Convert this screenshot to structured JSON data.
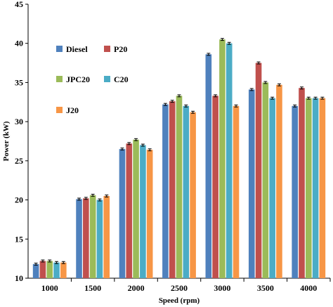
{
  "chart_data": {
    "type": "bar",
    "xlabel": "Speed (rpm)",
    "ylabel": "Power (kW)",
    "ylim": [
      10,
      45
    ],
    "yticks": [
      10,
      15,
      20,
      25,
      30,
      35,
      40,
      45
    ],
    "categories": [
      "1000",
      "1500",
      "2000",
      "2500",
      "3000",
      "3500",
      "4000"
    ],
    "series": [
      {
        "name": "Diesel",
        "color": "#4f81bd",
        "values": [
          11.8,
          20.1,
          26.5,
          32.2,
          38.6,
          34.1,
          32.0
        ]
      },
      {
        "name": "P20",
        "color": "#c0504d",
        "values": [
          12.2,
          20.2,
          27.2,
          32.6,
          33.3,
          37.5,
          34.3
        ]
      },
      {
        "name": "JPC20",
        "color": "#9bbb59",
        "values": [
          12.2,
          20.6,
          27.7,
          33.3,
          40.5,
          35.0,
          33.0
        ]
      },
      {
        "name": "C20",
        "color": "#4bacc6",
        "values": [
          12.0,
          20.0,
          27.0,
          32.0,
          40.0,
          33.0,
          33.0
        ]
      },
      {
        "name": "J20",
        "color": "#f79646",
        "values": [
          12.0,
          20.5,
          26.4,
          31.2,
          32.0,
          34.7,
          33.0
        ]
      }
    ],
    "legend_position": "top-left",
    "grid": false,
    "error_bars": true
  }
}
